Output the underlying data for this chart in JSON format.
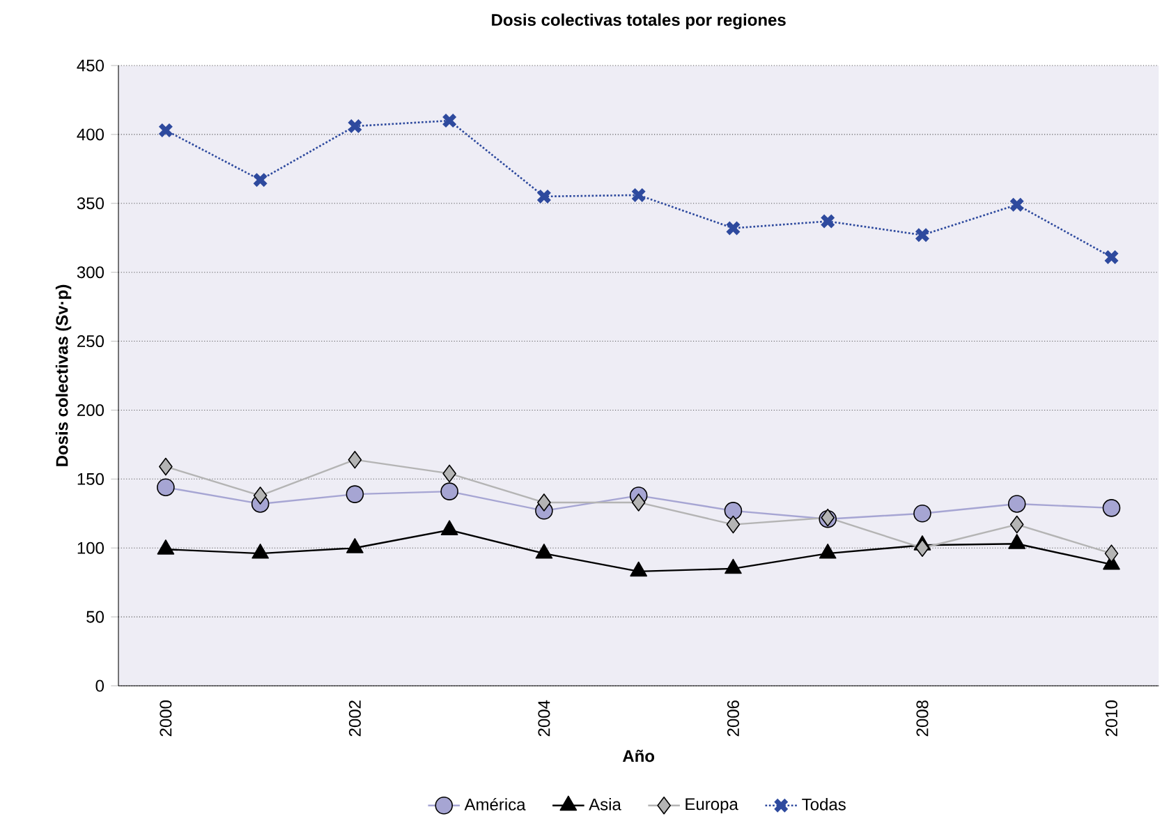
{
  "chart_data": {
    "type": "line",
    "title": "Dosis colectivas totales por regiones",
    "xlabel": "Año",
    "ylabel": "Dosis colectivas (Sv·p)",
    "categories": [
      "2000",
      null,
      "2002",
      null,
      "2004",
      null,
      "2006",
      null,
      "2008",
      null,
      "2010"
    ],
    "ylim": [
      0,
      450
    ],
    "yticks": [
      0,
      50,
      100,
      150,
      200,
      250,
      300,
      350,
      400,
      450
    ],
    "grid": "y",
    "legend": "bottom",
    "series": [
      {
        "name": "América",
        "color": "#a6a5d3",
        "marker": "circle",
        "line_style": "solid",
        "values": [
          144,
          132,
          139,
          141,
          127,
          138,
          127,
          121,
          125,
          132,
          129
        ]
      },
      {
        "name": "Asia",
        "color": "#000000",
        "marker": "triangle",
        "line_style": "solid",
        "values": [
          99,
          96,
          100,
          113,
          96,
          83,
          85,
          96,
          102,
          103,
          88
        ]
      },
      {
        "name": "Europa",
        "color": "#b4b4b4",
        "marker": "diamond",
        "line_style": "solid",
        "values": [
          159,
          138,
          164,
          154,
          133,
          133,
          117,
          122,
          100,
          117,
          96
        ]
      },
      {
        "name": "Todas",
        "color": "#2e4a9e",
        "marker": "cross",
        "line_style": "dotted",
        "values": [
          403,
          367,
          406,
          410,
          355,
          356,
          332,
          337,
          327,
          349,
          311
        ]
      }
    ]
  }
}
